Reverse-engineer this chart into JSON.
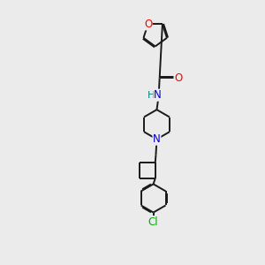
{
  "bg_color": "#ebebeb",
  "bond_color": "#1a1a1a",
  "atom_colors": {
    "O": "#ff0000",
    "N_blue": "#0000cc",
    "N_teal": "#008080",
    "Cl": "#00aa00",
    "C": "#1a1a1a"
  },
  "font_size_atom": 8.5,
  "line_width": 1.4,
  "xlim": [
    0,
    10
  ],
  "ylim": [
    0,
    14
  ]
}
